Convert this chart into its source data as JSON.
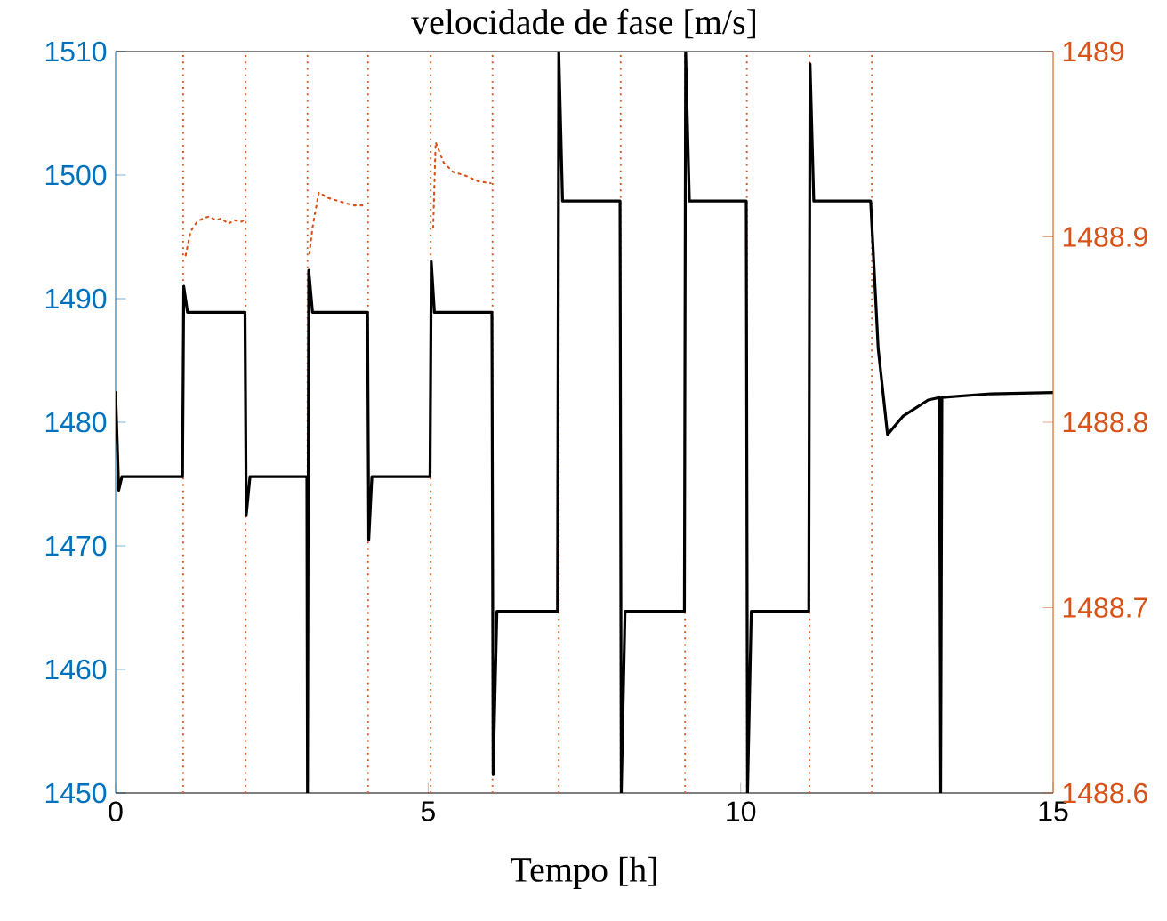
{
  "chart_data": {
    "type": "line",
    "title": "velocidade de fase [m/s]",
    "xlabel": "Tempo [h]",
    "xlim": [
      0,
      15
    ],
    "xticks": [
      0,
      5,
      10,
      15
    ],
    "ylim": [
      1450,
      1510
    ],
    "yticks": [
      1450,
      1460,
      1470,
      1480,
      1490,
      1500,
      1510
    ],
    "y2lim": [
      1488.6,
      1489
    ],
    "y2ticks": [
      1488.6,
      1488.7,
      1488.8,
      1488.9,
      1489
    ],
    "series": [
      {
        "color": "#000000",
        "line_style": "solid",
        "x": [
          0,
          0.05,
          0.1,
          1.07,
          1.09,
          1.15,
          2.07,
          2.09,
          2.15,
          3.06,
          3.07,
          3.09,
          3.15,
          4.03,
          4.05,
          4.1,
          5.03,
          5.05,
          5.1,
          6.02,
          6.04,
          6.1,
          7.07,
          7.09,
          7.15,
          8.07,
          8.09,
          8.15,
          9.1,
          9.12,
          9.18,
          10.09,
          10.11,
          10.17,
          11.09,
          11.11,
          11.17,
          12.08,
          12.2,
          12.35,
          12.6,
          13.0,
          13.18,
          13.2,
          13.22,
          14.0,
          15.0
        ],
        "values": [
          1482.4,
          1474.5,
          1475.6,
          1475.6,
          1491,
          1488.9,
          1488.9,
          1472.5,
          1475.6,
          1475.6,
          1450,
          1492.3,
          1488.9,
          1488.9,
          1470.5,
          1475.6,
          1475.6,
          1493,
          1488.9,
          1488.9,
          1451.5,
          1464.7,
          1464.7,
          1510,
          1497.9,
          1497.9,
          1450,
          1464.7,
          1464.7,
          1510,
          1497.9,
          1497.9,
          1450,
          1464.7,
          1464.7,
          1509,
          1497.9,
          1497.9,
          1486,
          1479,
          1480.5,
          1481.8,
          1482,
          1450,
          1482,
          1482.3,
          1482.4
        ]
      },
      {
        "color": "#d95319",
        "line_style": "dotted",
        "axis": "y2",
        "x": [
          1.12,
          1.2,
          1.3,
          1.4,
          1.5,
          1.6,
          1.7,
          1.8,
          1.9,
          2.0,
          2.05,
          2.5,
          3.1,
          3.15,
          3.25,
          3.4,
          3.6,
          3.8,
          4.0,
          4.5,
          5.08,
          5.12,
          5.25,
          5.4,
          5.6,
          5.8,
          6.0
        ],
        "values": [
          1488.89,
          1488.903,
          1488.908,
          1488.91,
          1488.911,
          1488.909,
          1488.91,
          1488.907,
          1488.909,
          1488.908,
          1488.909,
          null,
          1488.891,
          1488.905,
          1488.924,
          1488.921,
          1488.919,
          1488.917,
          1488.917,
          null,
          1488.905,
          1488.951,
          1488.94,
          1488.935,
          1488.933,
          1488.93,
          1488.929
        ]
      }
    ],
    "ref_lines": [
      {
        "axis": "x",
        "value": 1.08,
        "color": "#d95319",
        "line_style": "dotted"
      },
      {
        "axis": "x",
        "value": 2.08,
        "color": "#d95319",
        "line_style": "dotted"
      },
      {
        "axis": "x",
        "value": 3.07,
        "color": "#d95319",
        "line_style": "dotted"
      },
      {
        "axis": "x",
        "value": 4.04,
        "color": "#d95319",
        "line_style": "dotted"
      },
      {
        "axis": "x",
        "value": 5.04,
        "color": "#d95319",
        "line_style": "dotted"
      },
      {
        "axis": "x",
        "value": 6.03,
        "color": "#d95319",
        "line_style": "dotted"
      },
      {
        "axis": "x",
        "value": 7.09,
        "color": "#d95319",
        "line_style": "dotted"
      },
      {
        "axis": "x",
        "value": 8.08,
        "color": "#d95319",
        "line_style": "dotted"
      },
      {
        "axis": "x",
        "value": 9.11,
        "color": "#d95319",
        "line_style": "dotted"
      },
      {
        "axis": "x",
        "value": 10.1,
        "color": "#d95319",
        "line_style": "dotted"
      },
      {
        "axis": "x",
        "value": 11.1,
        "color": "#d95319",
        "line_style": "dotted"
      },
      {
        "axis": "x",
        "value": 12.1,
        "color": "#d95319",
        "line_style": "dotted"
      }
    ],
    "grid": false
  }
}
